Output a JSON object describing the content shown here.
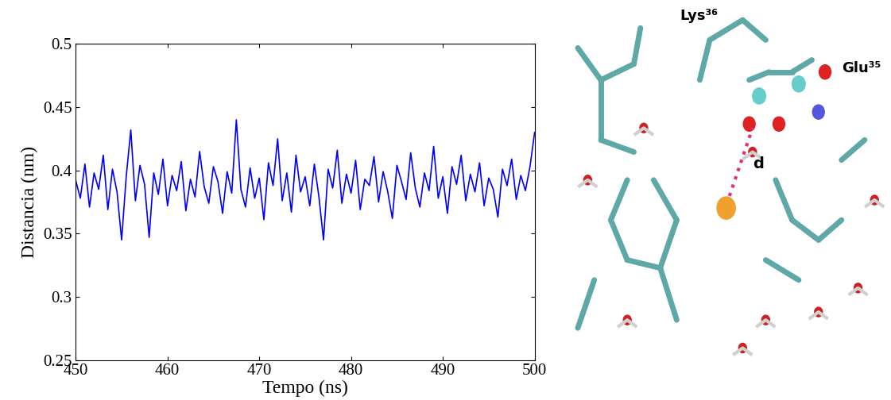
{
  "chart_data": {
    "type": "line",
    "xlabel": "Tempo (ns)",
    "ylabel": "Distancia (nm)",
    "x": [
      450.0,
      450.5,
      451.0,
      451.5,
      452.0,
      452.5,
      453.0,
      453.5,
      454.0,
      454.5,
      455.0,
      455.5,
      456.0,
      456.5,
      457.0,
      457.5,
      458.0,
      458.5,
      459.0,
      459.5,
      460.0,
      460.5,
      461.0,
      461.5,
      462.0,
      462.5,
      463.0,
      463.5,
      464.0,
      464.5,
      465.0,
      465.5,
      466.0,
      466.5,
      467.0,
      467.5,
      468.0,
      468.5,
      469.0,
      469.5,
      470.0,
      470.5,
      471.0,
      471.5,
      472.0,
      472.5,
      473.0,
      473.5,
      474.0,
      474.5,
      475.0,
      475.5,
      476.0,
      476.5,
      477.0,
      477.5,
      478.0,
      478.5,
      479.0,
      479.5,
      480.0,
      480.5,
      481.0,
      481.5,
      482.0,
      482.5,
      483.0,
      483.5,
      484.0,
      484.5,
      485.0,
      485.5,
      486.0,
      486.5,
      487.0,
      487.5,
      488.0,
      488.5,
      489.0,
      489.5,
      490.0,
      490.5,
      491.0,
      491.5,
      492.0,
      492.5,
      493.0,
      493.5,
      494.0,
      494.5,
      495.0,
      495.5,
      496.0,
      496.5,
      497.0,
      497.5,
      498.0,
      498.5,
      499.0,
      499.5,
      500.0
    ],
    "values": [
      0.392,
      0.378,
      0.405,
      0.371,
      0.398,
      0.385,
      0.412,
      0.369,
      0.401,
      0.383,
      0.345,
      0.395,
      0.432,
      0.376,
      0.404,
      0.389,
      0.347,
      0.398,
      0.381,
      0.409,
      0.372,
      0.396,
      0.384,
      0.407,
      0.368,
      0.393,
      0.379,
      0.415,
      0.387,
      0.374,
      0.403,
      0.391,
      0.366,
      0.399,
      0.382,
      0.44,
      0.385,
      0.371,
      0.402,
      0.378,
      0.394,
      0.361,
      0.406,
      0.388,
      0.425,
      0.376,
      0.398,
      0.367,
      0.412,
      0.383,
      0.395,
      0.372,
      0.405,
      0.379,
      0.345,
      0.401,
      0.386,
      0.416,
      0.374,
      0.397,
      0.382,
      0.408,
      0.369,
      0.393,
      0.388,
      0.411,
      0.375,
      0.399,
      0.383,
      0.362,
      0.404,
      0.391,
      0.377,
      0.414,
      0.386,
      0.371,
      0.398,
      0.384,
      0.419,
      0.378,
      0.395,
      0.366,
      0.403,
      0.389,
      0.412,
      0.376,
      0.397,
      0.383,
      0.406,
      0.372,
      0.394,
      0.385,
      0.363,
      0.401,
      0.388,
      0.409,
      0.377,
      0.396,
      0.384,
      0.403,
      0.43
    ],
    "color": "#0000ff",
    "xlim": [
      450,
      500
    ],
    "ylim": [
      0.25,
      0.5
    ],
    "xticks": [
      450,
      460,
      470,
      480,
      490,
      500
    ],
    "yticks": [
      0.25,
      0.3,
      0.35,
      0.4,
      0.45,
      0.5
    ]
  },
  "molecular_image": {
    "labels": [
      "Lys³⁶",
      "Glu³⁵",
      "d"
    ]
  }
}
